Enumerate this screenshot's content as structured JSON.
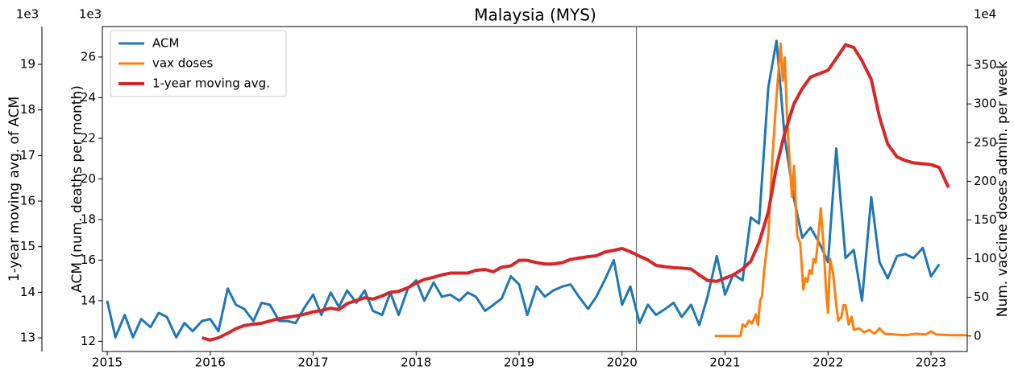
{
  "chart_data": {
    "type": "line",
    "title": "Malaysia (MYS)",
    "y_label": "ACM (num. deaths per month)",
    "y2_label": "Num. vaccine doses admin. per week",
    "y3_label": "1-year moving avg. of ACM",
    "y_offset": "1e3",
    "y2_offset": "1e4",
    "y3_offset": "1e3",
    "xlim": [
      2014.953,
      2023.352
    ],
    "xticks": [
      2015,
      2016,
      2017,
      2018,
      2019,
      2020,
      2021,
      2022,
      2023
    ],
    "ylim": [
      11.5,
      27.5
    ],
    "yticks": [
      12,
      14,
      16,
      18,
      20,
      22,
      24,
      26
    ],
    "y2lim": [
      -20,
      400
    ],
    "y2ticks": [
      0,
      50,
      100,
      150,
      200,
      250,
      300,
      350
    ],
    "y3lim": [
      12.7,
      19.83
    ],
    "y3ticks": [
      13,
      14,
      15,
      16,
      17,
      18,
      19
    ],
    "vline_x": 2020.14,
    "legend": "upper left",
    "series": [
      {
        "name": "ACM",
        "color": "#1f77b4",
        "axis": "y",
        "x": [
          2015,
          2015.08,
          2015.17,
          2015.25,
          2015.33,
          2015.42,
          2015.5,
          2015.58,
          2015.67,
          2015.75,
          2015.83,
          2015.92,
          2016,
          2016.08,
          2016.17,
          2016.25,
          2016.33,
          2016.42,
          2016.5,
          2016.58,
          2016.67,
          2016.75,
          2016.83,
          2016.92,
          2017,
          2017.08,
          2017.17,
          2017.25,
          2017.33,
          2017.42,
          2017.5,
          2017.58,
          2017.67,
          2017.75,
          2017.83,
          2017.92,
          2018,
          2018.08,
          2018.17,
          2018.25,
          2018.33,
          2018.42,
          2018.5,
          2018.58,
          2018.67,
          2018.75,
          2018.83,
          2018.92,
          2019,
          2019.08,
          2019.17,
          2019.25,
          2019.33,
          2019.42,
          2019.5,
          2019.58,
          2019.67,
          2019.75,
          2019.83,
          2019.92,
          2020,
          2020.08,
          2020.17,
          2020.25,
          2020.33,
          2020.42,
          2020.5,
          2020.58,
          2020.67,
          2020.75,
          2020.83,
          2020.92,
          2021,
          2021.08,
          2021.17,
          2021.25,
          2021.33,
          2021.42,
          2021.5,
          2021.58,
          2021.67,
          2021.75,
          2021.83,
          2021.92,
          2022,
          2022.08,
          2022.17,
          2022.25,
          2022.33,
          2022.42,
          2022.5,
          2022.58,
          2022.67,
          2022.75,
          2022.83,
          2022.92,
          2023,
          2023.08
        ],
        "values": [
          14.0,
          12.2,
          13.3,
          12.2,
          13.1,
          12.7,
          13.4,
          13.2,
          12.2,
          12.9,
          12.5,
          13.0,
          13.1,
          12.5,
          14.6,
          13.8,
          13.6,
          13.0,
          13.9,
          13.8,
          13.0,
          13.0,
          12.9,
          13.7,
          14.3,
          13.3,
          14.4,
          13.7,
          14.5,
          13.9,
          14.5,
          13.5,
          13.3,
          14.4,
          13.3,
          14.6,
          15.0,
          14.0,
          14.9,
          14.2,
          14.3,
          14.0,
          14.4,
          14.2,
          13.5,
          13.8,
          14.1,
          15.2,
          14.8,
          13.3,
          14.7,
          14.2,
          14.5,
          14.7,
          14.8,
          14.2,
          13.6,
          14.2,
          15.0,
          16.0,
          13.8,
          14.7,
          12.9,
          13.8,
          13.3,
          13.6,
          13.9,
          13.2,
          13.8,
          12.8,
          14.2,
          16.2,
          14.3,
          15.3,
          15.0,
          18.1,
          17.8,
          24.5,
          26.8,
          22.0,
          19.0,
          17.1,
          17.6,
          16.8,
          15.9,
          21.5,
          16.1,
          16.5,
          14.0,
          19.1,
          15.9,
          15.1,
          16.2,
          16.3,
          16.1,
          16.6,
          15.2,
          15.8
        ]
      },
      {
        "name": "vax doses",
        "color": "#ff7f0e",
        "axis": "y2",
        "x": [
          2020.9,
          2021.1,
          2021.15,
          2021.17,
          2021.2,
          2021.23,
          2021.26,
          2021.28,
          2021.3,
          2021.32,
          2021.34,
          2021.36,
          2021.38,
          2021.42,
          2021.46,
          2021.5,
          2021.54,
          2021.56,
          2021.58,
          2021.6,
          2021.62,
          2021.65,
          2021.67,
          2021.7,
          2021.73,
          2021.76,
          2021.78,
          2021.8,
          2021.82,
          2021.84,
          2021.86,
          2021.88,
          2021.9,
          2021.93,
          2021.96,
          2021.98,
          2022.0,
          2022.02,
          2022.05,
          2022.08,
          2022.1,
          2022.13,
          2022.15,
          2022.17,
          2022.2,
          2022.23,
          2022.25,
          2022.3,
          2022.35,
          2022.4,
          2022.45,
          2022.5,
          2022.55,
          2022.65,
          2022.75,
          2022.85,
          2022.95,
          2023.0,
          2023.05,
          2023.2,
          2023.35
        ],
        "values": [
          0,
          0,
          0,
          15,
          12,
          20,
          16,
          22,
          28,
          14,
          45,
          52,
          85,
          130,
          230,
          310,
          378,
          330,
          360,
          290,
          240,
          180,
          220,
          130,
          120,
          60,
          75,
          70,
          85,
          80,
          100,
          95,
          120,
          165,
          110,
          60,
          30,
          100,
          80,
          40,
          20,
          25,
          40,
          40,
          15,
          25,
          8,
          10,
          5,
          8,
          3,
          10,
          3,
          2,
          1,
          3,
          2,
          6,
          2,
          1,
          1
        ]
      },
      {
        "name": "1-year moving avg.",
        "color": "#d62728",
        "axis": "y3",
        "x": [
          2015.92,
          2016,
          2016.08,
          2016.17,
          2016.25,
          2016.33,
          2016.42,
          2016.5,
          2016.58,
          2016.67,
          2016.75,
          2016.83,
          2016.92,
          2017,
          2017.08,
          2017.17,
          2017.25,
          2017.33,
          2017.42,
          2017.5,
          2017.58,
          2017.67,
          2017.75,
          2017.83,
          2017.92,
          2018,
          2018.08,
          2018.17,
          2018.25,
          2018.33,
          2018.42,
          2018.5,
          2018.58,
          2018.67,
          2018.75,
          2018.83,
          2018.92,
          2019,
          2019.08,
          2019.17,
          2019.25,
          2019.33,
          2019.42,
          2019.5,
          2019.58,
          2019.67,
          2019.75,
          2019.83,
          2019.92,
          2020,
          2020.08,
          2020.17,
          2020.25,
          2020.33,
          2020.42,
          2020.5,
          2020.58,
          2020.67,
          2020.75,
          2020.83,
          2020.92,
          2021,
          2021.08,
          2021.17,
          2021.25,
          2021.33,
          2021.42,
          2021.5,
          2021.58,
          2021.67,
          2021.75,
          2021.83,
          2021.92,
          2022,
          2022.08,
          2022.17,
          2022.25,
          2022.33,
          2022.42,
          2022.5,
          2022.58,
          2022.67,
          2022.75,
          2022.83,
          2022.92,
          2023,
          2023.08,
          2023.17
        ],
        "values": [
          13.0,
          12.95,
          13.0,
          13.1,
          13.2,
          13.27,
          13.3,
          13.32,
          13.37,
          13.42,
          13.45,
          13.48,
          13.52,
          13.57,
          13.6,
          13.65,
          13.62,
          13.75,
          13.82,
          13.88,
          13.85,
          13.92,
          14.0,
          14.02,
          14.1,
          14.2,
          14.28,
          14.33,
          14.38,
          14.42,
          14.42,
          14.42,
          14.48,
          14.5,
          14.45,
          14.55,
          14.58,
          14.7,
          14.7,
          14.65,
          14.62,
          14.62,
          14.65,
          14.72,
          14.75,
          14.78,
          14.8,
          14.88,
          14.92,
          14.96,
          14.89,
          14.79,
          14.71,
          14.59,
          14.56,
          14.54,
          14.53,
          14.51,
          14.38,
          14.26,
          14.24,
          14.31,
          14.38,
          14.51,
          14.68,
          15.09,
          15.76,
          16.76,
          17.5,
          18.14,
          18.47,
          18.72,
          18.8,
          18.87,
          19.13,
          19.43,
          19.37,
          19.08,
          18.67,
          17.84,
          17.25,
          16.97,
          16.89,
          16.84,
          16.82,
          16.8,
          16.74,
          16.3
        ]
      }
    ]
  }
}
